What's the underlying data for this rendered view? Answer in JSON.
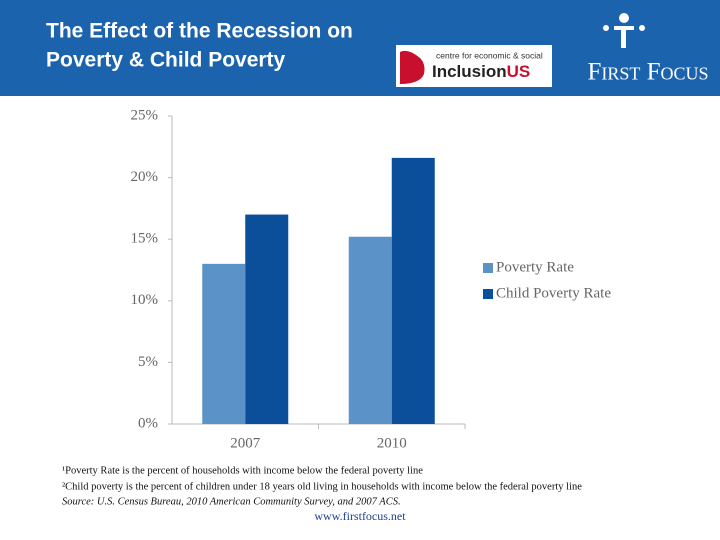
{
  "header": {
    "title_lines": [
      "The Effect of the Recession on",
      "Poverty & Child Poverty"
    ],
    "logo_small": "centre for economic & social",
    "logo_main": "Inclusion",
    "logo_accent": "US",
    "brand": "First Focus"
  },
  "chart_data": {
    "type": "bar",
    "categories": [
      "2007",
      "2010"
    ],
    "series": [
      {
        "name": "Poverty Rate",
        "color": "#5b93c8",
        "values": [
          13,
          15.2
        ]
      },
      {
        "name": "Child Poverty Rate",
        "color": "#0b4f9a",
        "values": [
          17,
          21.6
        ]
      }
    ],
    "ylim": [
      0,
      25
    ],
    "yticks": [
      {
        "value": 0,
        "label": "0%"
      },
      {
        "value": 5,
        "label": "5%"
      },
      {
        "value": 10,
        "label": "10%"
      },
      {
        "value": 15,
        "label": "15%"
      },
      {
        "value": 20,
        "label": "20%"
      },
      {
        "value": 25,
        "label": "25%"
      }
    ],
    "legend": "right"
  },
  "notes": {
    "lines": [
      "¹Poverty Rate is the percent of households with income below the federal poverty line",
      "²Child poverty is the percent of children under 18 years old living in households with income below the federal poverty line"
    ],
    "source": "Source: U.S. Census Bureau, 2010 American Community Survey, and 2007 ACS.",
    "url": "www.firstfocus.net"
  }
}
